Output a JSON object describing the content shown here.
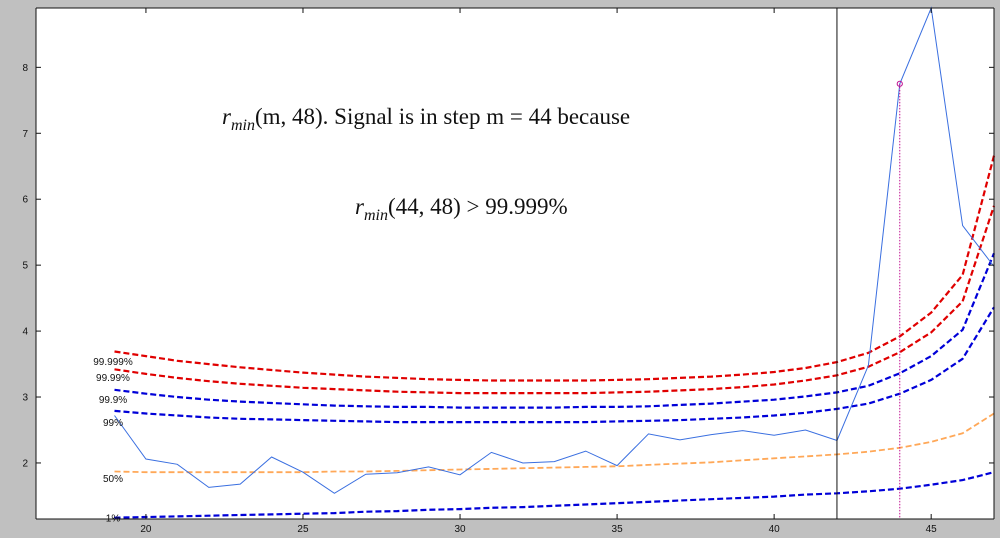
{
  "colors": {
    "background": "#c0c0c0",
    "plot_bg": "#ffffff",
    "signal": "#3a6fe0",
    "red": "#e00000",
    "blue": "#0000d8",
    "orange": "#ffa858",
    "marker": "#c01090"
  },
  "annotation": {
    "line1": {
      "r": "r",
      "sub": "min",
      "rest": "(m, 48). Signal is in step m = 44 because"
    },
    "line2": {
      "r": "r",
      "sub": "min",
      "rest": "(44, 48) > 99.999%"
    }
  },
  "chart_data": {
    "type": "line",
    "xlim": [
      16.5,
      47
    ],
    "ylim": [
      1.15,
      8.9
    ],
    "x_ticks": [
      20,
      25,
      30,
      35,
      40,
      45
    ],
    "y_ticks": [
      2,
      3,
      4,
      5,
      6,
      7,
      8
    ],
    "grid": false,
    "legend": "none",
    "vline_x": 42,
    "marker": {
      "x": 44,
      "y": 7.75
    },
    "x": [
      19,
      20,
      21,
      22,
      23,
      24,
      25,
      26,
      27,
      28,
      29,
      30,
      31,
      32,
      33,
      34,
      35,
      36,
      37,
      38,
      39,
      40,
      41,
      42,
      43,
      44,
      45,
      46,
      47
    ],
    "signal": [
      2.72,
      2.06,
      1.98,
      1.63,
      1.68,
      2.09,
      1.86,
      1.54,
      1.83,
      1.85,
      1.94,
      1.82,
      2.16,
      2.0,
      2.02,
      2.18,
      1.96,
      2.44,
      2.35,
      2.43,
      2.49,
      2.42,
      2.5,
      2.34,
      3.48,
      7.75,
      8.9,
      5.6,
      4.98
    ],
    "threshold_series": [
      {
        "label": "99.999%",
        "color": "red",
        "values": [
          3.69,
          3.62,
          3.55,
          3.5,
          3.45,
          3.41,
          3.37,
          3.34,
          3.31,
          3.29,
          3.27,
          3.26,
          3.25,
          3.25,
          3.25,
          3.25,
          3.26,
          3.27,
          3.29,
          3.31,
          3.34,
          3.38,
          3.44,
          3.53,
          3.67,
          3.92,
          4.28,
          4.85,
          6.66
        ]
      },
      {
        "label": "",
        "color": "red",
        "values": [
          3.42,
          3.35,
          3.29,
          3.24,
          3.2,
          3.17,
          3.14,
          3.12,
          3.1,
          3.08,
          3.07,
          3.06,
          3.06,
          3.06,
          3.06,
          3.06,
          3.07,
          3.08,
          3.1,
          3.12,
          3.15,
          3.19,
          3.25,
          3.33,
          3.46,
          3.68,
          3.98,
          4.45,
          5.9
        ]
      },
      {
        "label": "99.99%",
        "color": "blue",
        "values": [
          3.11,
          3.05,
          3.0,
          2.96,
          2.93,
          2.91,
          2.89,
          2.87,
          2.86,
          2.85,
          2.85,
          2.84,
          2.84,
          2.84,
          2.84,
          2.85,
          2.85,
          2.86,
          2.88,
          2.9,
          2.93,
          2.96,
          3.01,
          3.07,
          3.17,
          3.36,
          3.62,
          4.02,
          5.18
        ]
      },
      {
        "label": "99.9%",
        "color": "blue",
        "values": [
          2.79,
          2.75,
          2.72,
          2.69,
          2.67,
          2.66,
          2.65,
          2.64,
          2.63,
          2.62,
          2.62,
          2.62,
          2.62,
          2.62,
          2.62,
          2.62,
          2.63,
          2.64,
          2.65,
          2.67,
          2.69,
          2.72,
          2.76,
          2.82,
          2.9,
          3.05,
          3.26,
          3.58,
          4.36
        ]
      },
      {
        "label": "99%",
        "color": "blue",
        "values": [
          1.17,
          1.18,
          1.19,
          1.2,
          1.21,
          1.22,
          1.23,
          1.24,
          1.26,
          1.27,
          1.29,
          1.3,
          1.32,
          1.33,
          1.35,
          1.37,
          1.39,
          1.41,
          1.43,
          1.45,
          1.47,
          1.49,
          1.52,
          1.54,
          1.57,
          1.61,
          1.67,
          1.74,
          1.86
        ]
      },
      {
        "label": "50%",
        "color": "orange",
        "values": [
          1.87,
          1.86,
          1.86,
          1.86,
          1.86,
          1.86,
          1.86,
          1.87,
          1.87,
          1.88,
          1.89,
          1.9,
          1.91,
          1.92,
          1.93,
          1.94,
          1.95,
          1.97,
          1.99,
          2.01,
          2.04,
          2.07,
          2.1,
          2.13,
          2.17,
          2.23,
          2.32,
          2.45,
          2.75
        ]
      }
    ],
    "percentile_labels": [
      {
        "text": "99.999%",
        "y": 3.55
      },
      {
        "text": "99.99%",
        "y": 3.3
      },
      {
        "text": "99.9%",
        "y": 2.97
      },
      {
        "text": "99%",
        "y": 2.62
      },
      {
        "text": "50%",
        "y": 1.77
      },
      {
        "text": "1%",
        "y": 1.17
      }
    ]
  }
}
